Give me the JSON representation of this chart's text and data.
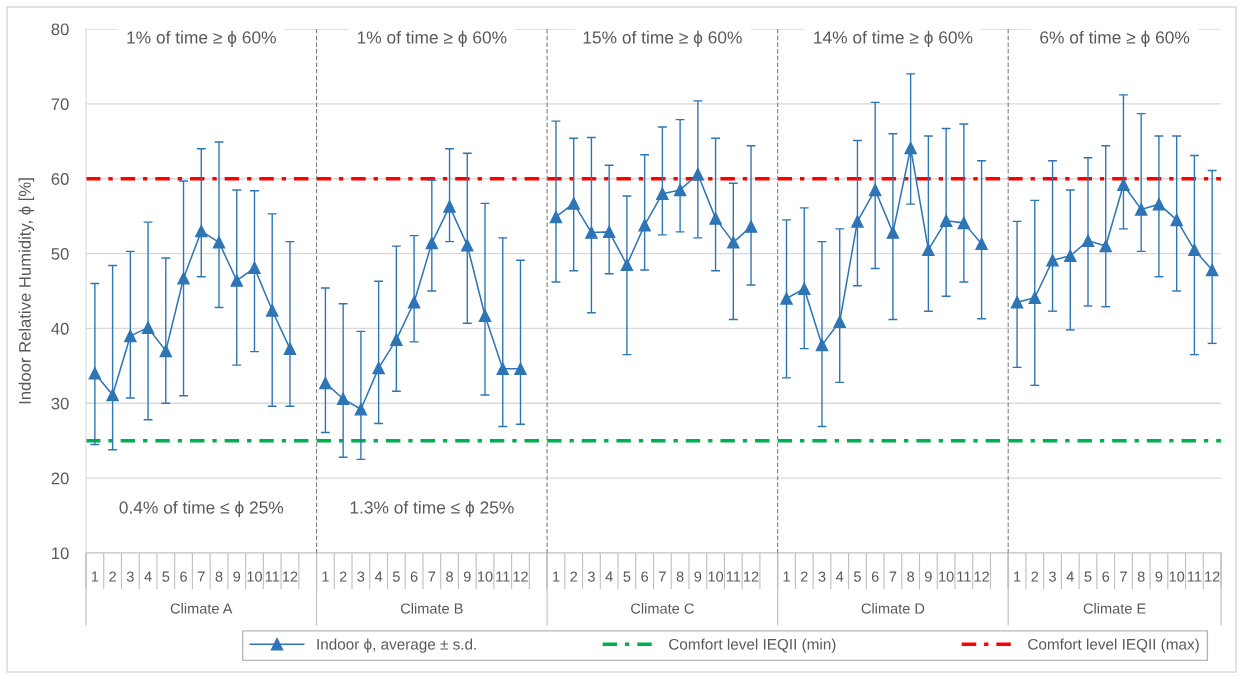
{
  "chart_data": [
    {
      "type": "line",
      "xlabel": "Climate A",
      "ylabel": "Indoor Relative Humidity, ϕ [%]",
      "categories": [
        "1",
        "2",
        "3",
        "4",
        "5",
        "6",
        "7",
        "8",
        "9",
        "10",
        "11",
        "12",
        null
      ],
      "series": [
        {
          "name": "Indoor ϕ, average ± s.d.",
          "color": "#2e75b6",
          "values": [
            34.0,
            31.1,
            39.0,
            40.1,
            37.0,
            46.7,
            53.0,
            51.5,
            46.4,
            48.1,
            42.4,
            37.3,
            null
          ],
          "errors": [
            [
              24.5,
              46.0
            ],
            [
              23.8,
              48.4
            ],
            [
              30.7,
              50.3
            ],
            [
              27.8,
              54.2
            ],
            [
              30.0,
              49.4
            ],
            [
              31.0,
              59.7
            ],
            [
              46.9,
              64.0
            ],
            [
              42.8,
              64.9
            ],
            [
              35.1,
              58.5
            ],
            [
              36.9,
              58.4
            ],
            [
              29.6,
              55.3
            ],
            [
              29.6,
              51.6
            ],
            null
          ]
        }
      ],
      "ylim": [
        10,
        80
      ],
      "yticks": [
        10,
        20,
        30,
        40,
        50,
        60,
        70,
        80
      ],
      "grid": "y",
      "marker": "triangle",
      "line_style": "solid",
      "ref_lines": [
        {
          "axis": "y",
          "value": 25,
          "label": "Comfort level IEQII (min)",
          "color": "#00b050",
          "line_style": "dashdot"
        },
        {
          "axis": "y",
          "value": 60,
          "label": "Comfort level IEQII (max)",
          "color": "#ff0000",
          "line_style": "dashdot"
        }
      ],
      "annotations": [
        "1% of time ≥ ϕ 60%",
        "0.4% of time ≤ ϕ 25%"
      ],
      "legend": "bottom"
    },
    {
      "type": "line",
      "xlabel": "Climate B",
      "categories": [
        "1",
        "2",
        "3",
        "4",
        "5",
        "6",
        "7",
        "8",
        "9",
        "10",
        "11",
        "12",
        null
      ],
      "series": [
        {
          "color": "#2e75b6",
          "values": [
            32.7,
            30.6,
            29.2,
            34.7,
            38.5,
            43.5,
            51.4,
            56.3,
            51.1,
            41.7,
            34.6,
            34.6,
            null
          ],
          "errors": [
            [
              26.1,
              45.4
            ],
            [
              22.8,
              43.3
            ],
            [
              22.5,
              39.6
            ],
            [
              27.3,
              46.3
            ],
            [
              31.6,
              51.0
            ],
            [
              38.2,
              52.4
            ],
            [
              45.0,
              59.8
            ],
            [
              51.6,
              64.0
            ],
            [
              40.7,
              63.4
            ],
            [
              31.1,
              56.7
            ],
            [
              26.9,
              52.1
            ],
            [
              27.2,
              49.1
            ],
            null
          ]
        }
      ],
      "ylim": [
        10,
        80
      ],
      "yticks": [
        10,
        20,
        30,
        40,
        50,
        60,
        70,
        80
      ],
      "grid": "y",
      "marker": "triangle",
      "line_style": "solid",
      "tick_labels": "x",
      "ref_lines": [
        {
          "axis": "y",
          "value": 25,
          "color": "#00b050",
          "line_style": "dashdot"
        },
        {
          "axis": "y",
          "value": 60,
          "color": "#ff0000",
          "line_style": "dashdot"
        }
      ],
      "annotations": [
        "1% of time ≥ ϕ 60%",
        "1.3% of time ≤ ϕ 25%"
      ]
    },
    {
      "type": "line",
      "xlabel": "Climate C",
      "categories": [
        "1",
        "2",
        "3",
        "4",
        "5",
        "6",
        "7",
        "8",
        "9",
        "10",
        "11",
        "12",
        null
      ],
      "series": [
        {
          "color": "#2e75b6",
          "values": [
            54.9,
            56.7,
            52.8,
            52.9,
            48.5,
            53.8,
            58.0,
            58.5,
            60.6,
            54.7,
            51.5,
            53.6,
            null
          ],
          "errors": [
            [
              46.2,
              67.7
            ],
            [
              47.7,
              65.4
            ],
            [
              42.1,
              65.5
            ],
            [
              47.3,
              61.8
            ],
            [
              36.5,
              57.7
            ],
            [
              47.8,
              63.2
            ],
            [
              52.5,
              66.9
            ],
            [
              52.9,
              67.9
            ],
            [
              52.1,
              70.4
            ],
            [
              47.7,
              65.4
            ],
            [
              41.2,
              59.4
            ],
            [
              45.8,
              64.4
            ],
            null
          ]
        }
      ],
      "ylim": [
        10,
        80
      ],
      "yticks": [
        10,
        20,
        30,
        40,
        50,
        60,
        70,
        80
      ],
      "grid": "y",
      "marker": "triangle",
      "line_style": "solid",
      "tick_labels": "x",
      "ref_lines": [
        {
          "axis": "y",
          "value": 25,
          "color": "#00b050",
          "line_style": "dashdot"
        },
        {
          "axis": "y",
          "value": 60,
          "color": "#ff0000",
          "line_style": "dashdot"
        }
      ],
      "annotations": [
        "15% of time ≥ ϕ 60%"
      ]
    },
    {
      "type": "line",
      "xlabel": "Climate D",
      "categories": [
        "1",
        "2",
        "3",
        "4",
        "5",
        "6",
        "7",
        "8",
        "9",
        "10",
        "11",
        "12",
        null
      ],
      "series": [
        {
          "color": "#2e75b6",
          "values": [
            44.0,
            45.3,
            37.8,
            40.9,
            54.3,
            58.5,
            52.8,
            64.1,
            50.5,
            54.4,
            54.1,
            51.3,
            null
          ],
          "errors": [
            [
              33.4,
              54.5
            ],
            [
              37.3,
              56.1
            ],
            [
              26.9,
              51.6
            ],
            [
              32.8,
              53.3
            ],
            [
              45.7,
              65.1
            ],
            [
              48.0,
              70.2
            ],
            [
              41.2,
              66.0
            ],
            [
              56.6,
              74.0
            ],
            [
              42.3,
              65.7
            ],
            [
              44.3,
              66.7
            ],
            [
              46.2,
              67.3
            ],
            [
              41.3,
              62.4
            ],
            null
          ]
        }
      ],
      "ylim": [
        10,
        80
      ],
      "yticks": [
        10,
        20,
        30,
        40,
        50,
        60,
        70,
        80
      ],
      "grid": "y",
      "marker": "triangle",
      "line_style": "solid",
      "tick_labels": "x",
      "ref_lines": [
        {
          "axis": "y",
          "value": 25,
          "color": "#00b050",
          "line_style": "dashdot"
        },
        {
          "axis": "y",
          "value": 60,
          "color": "#ff0000",
          "line_style": "dashdot"
        }
      ],
      "annotations": [
        "14% of time ≥ ϕ 60%"
      ]
    },
    {
      "type": "line",
      "xlabel": "Climate E",
      "categories": [
        "1",
        "2",
        "3",
        "4",
        "5",
        "6",
        "7",
        "8",
        "9",
        "10",
        "11",
        "12"
      ],
      "series": [
        {
          "color": "#2e75b6",
          "values": [
            43.5,
            44.1,
            49.1,
            49.7,
            51.7,
            51.0,
            59.2,
            55.9,
            56.6,
            54.5,
            50.5,
            47.8
          ],
          "errors": [
            [
              34.8,
              54.3
            ],
            [
              32.4,
              57.1
            ],
            [
              42.3,
              62.4
            ],
            [
              39.8,
              58.5
            ],
            [
              43.0,
              62.8
            ],
            [
              42.9,
              64.4
            ],
            [
              53.3,
              71.2
            ],
            [
              50.3,
              68.7
            ],
            [
              46.9,
              65.7
            ],
            [
              45.0,
              65.7
            ],
            [
              36.5,
              63.1
            ],
            [
              38.0,
              61.1
            ]
          ]
        }
      ],
      "ylim": [
        10,
        80
      ],
      "yticks": [
        10,
        20,
        30,
        40,
        50,
        60,
        70,
        80
      ],
      "grid": "y",
      "marker": "triangle",
      "line_style": "solid",
      "tick_labels": "x",
      "ref_lines": [
        {
          "axis": "y",
          "value": 25,
          "color": "#00b050",
          "line_style": "dashdot"
        },
        {
          "axis": "y",
          "value": 60,
          "color": "#ff0000",
          "line_style": "dashdot"
        }
      ],
      "annotations": [
        "6% of time ≥ ϕ 60%"
      ]
    }
  ]
}
